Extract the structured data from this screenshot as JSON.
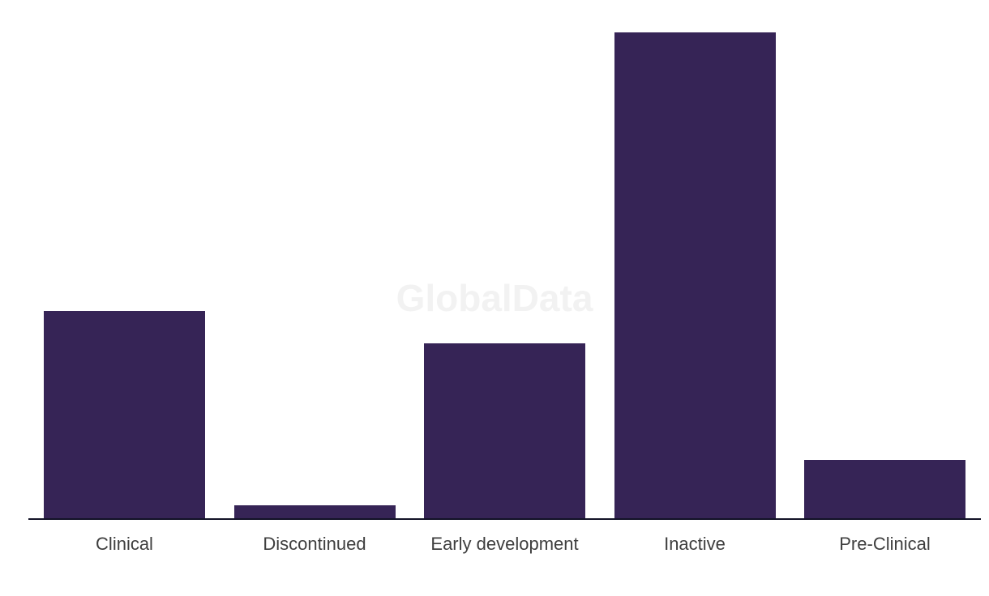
{
  "watermark": {
    "text": "GlobalData",
    "color": "#f2f2f2"
  },
  "chart_data": {
    "type": "bar",
    "categories": [
      "Clinical",
      "Discontinued",
      "Early development",
      "Inactive",
      "Pre-Clinical"
    ],
    "values": [
      32,
      2,
      27,
      75,
      9
    ],
    "title": "",
    "xlabel": "",
    "ylabel": "",
    "ylim": [
      0,
      80
    ],
    "grid": false,
    "legend": false,
    "bar_color": "#362456",
    "axis_line_color": "#131327",
    "label_color": "#3e3e3e",
    "background_color": "#ffffff"
  }
}
